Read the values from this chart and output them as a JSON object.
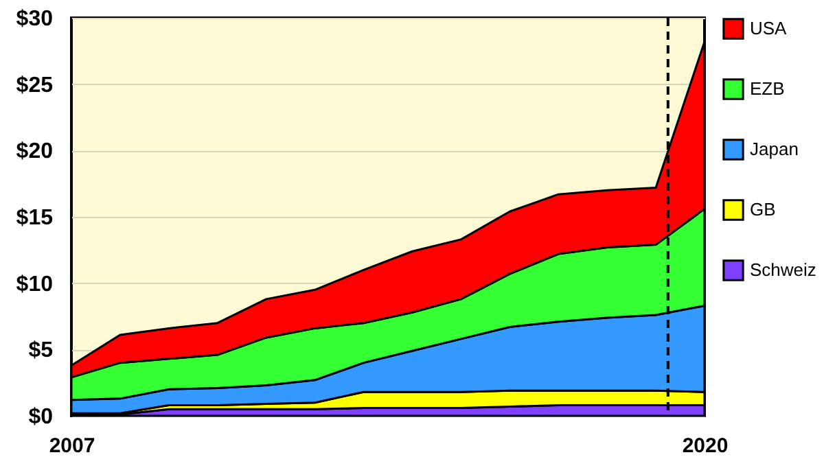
{
  "chart_data": {
    "type": "area",
    "stacked": true,
    "x": [
      2007,
      2008,
      2009,
      2010,
      2011,
      2012,
      2013,
      2014,
      2015,
      2016,
      2017,
      2018,
      2019,
      2020
    ],
    "series": [
      {
        "name": "Schweiz",
        "color": "#7f3fff",
        "values": [
          0.1,
          0.1,
          0.5,
          0.5,
          0.5,
          0.5,
          0.6,
          0.6,
          0.6,
          0.7,
          0.8,
          0.8,
          0.8,
          0.8
        ]
      },
      {
        "name": "GB",
        "color": "#ffff00",
        "values": [
          0.1,
          0.1,
          0.3,
          0.3,
          0.4,
          0.5,
          1.2,
          1.2,
          1.2,
          1.2,
          1.1,
          1.1,
          1.1,
          1.0
        ]
      },
      {
        "name": "Japan",
        "color": "#3399ff",
        "values": [
          1.0,
          1.1,
          1.2,
          1.3,
          1.4,
          1.7,
          2.2,
          3.1,
          4.0,
          4.8,
          5.2,
          5.5,
          5.7,
          6.5
        ]
      },
      {
        "name": "EZB",
        "color": "#33ff33",
        "values": [
          1.7,
          2.7,
          2.3,
          2.5,
          3.6,
          3.9,
          3.0,
          2.9,
          3.0,
          4.0,
          5.1,
          5.3,
          5.3,
          7.3
        ]
      },
      {
        "name": "USA",
        "color": "#ff0000",
        "values": [
          0.9,
          2.1,
          2.3,
          2.4,
          2.9,
          2.9,
          4.0,
          4.6,
          4.5,
          4.7,
          4.5,
          4.3,
          4.3,
          12.6
        ]
      }
    ],
    "xlim": [
      2007,
      2020
    ],
    "xticks": [
      2007,
      2020
    ],
    "ylim": [
      0,
      30
    ],
    "yticks": [
      {
        "value": 0,
        "label": "$0"
      },
      {
        "value": 5,
        "label": "$5"
      },
      {
        "value": 10,
        "label": "$10"
      },
      {
        "value": 15,
        "label": "$15"
      },
      {
        "value": 20,
        "label": "$20"
      },
      {
        "value": 25,
        "label": "$25"
      },
      {
        "value": 30,
        "label": "$30"
      }
    ],
    "ref_lines": [
      {
        "axis": "x",
        "value": 2019.25,
        "label": null,
        "color": "#000000",
        "line_style": "dashed"
      }
    ],
    "grid": "y",
    "legend": "right"
  }
}
